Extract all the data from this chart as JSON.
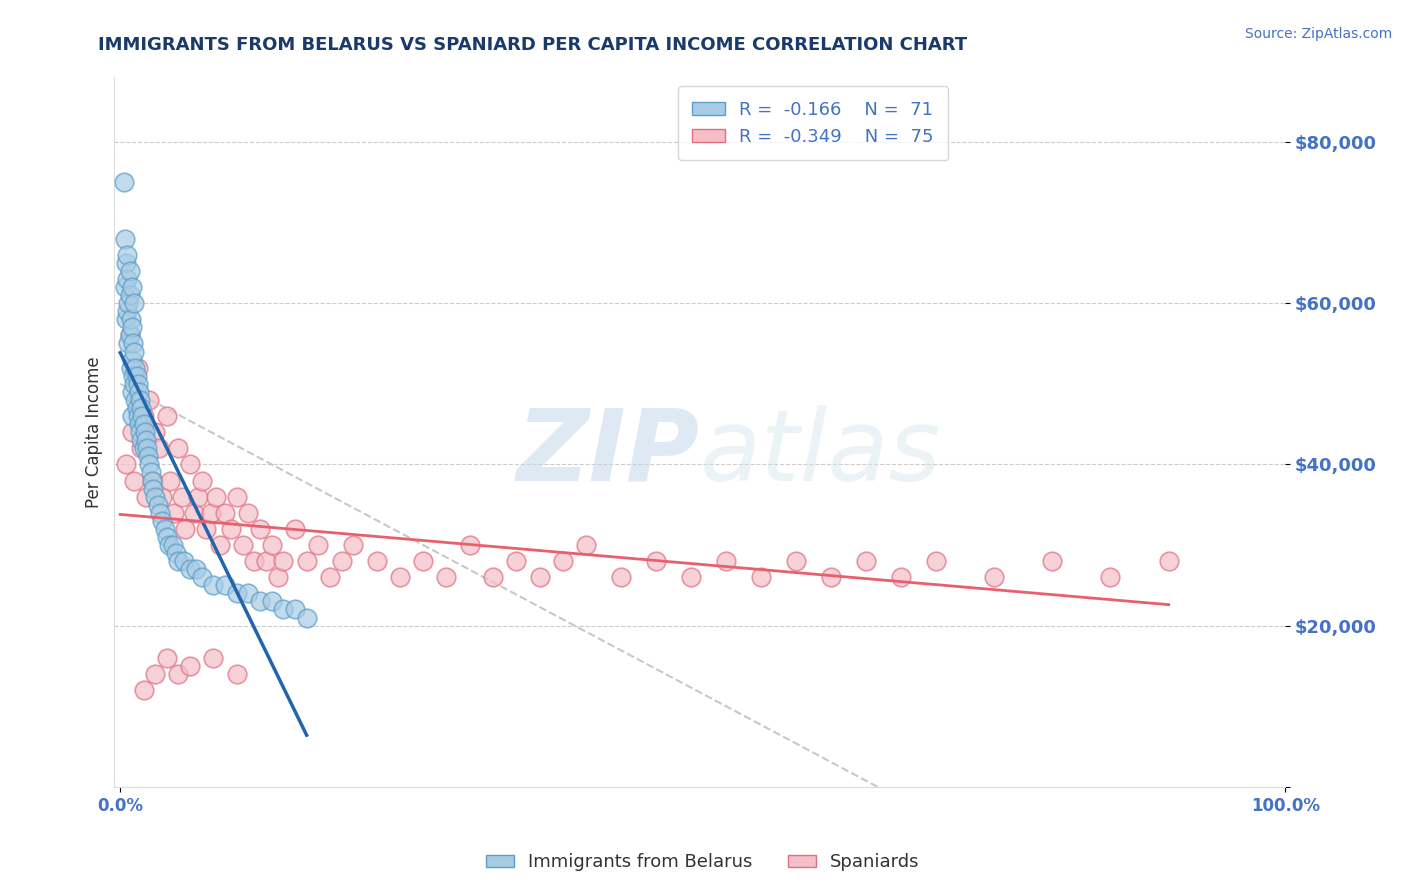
{
  "title": "IMMIGRANTS FROM BELARUS VS SPANIARD PER CAPITA INCOME CORRELATION CHART",
  "source": "Source: ZipAtlas.com",
  "ylabel": "Per Capita Income",
  "ylim": [
    0,
    88000
  ],
  "xlim": [
    -0.005,
    1.0
  ],
  "legend_r1": "-0.166",
  "legend_n1": "71",
  "legend_r2": "-0.349",
  "legend_n2": "75",
  "watermark_zip": "ZIP",
  "watermark_atlas": "atlas",
  "blue_color": "#a8cce4",
  "blue_edge_color": "#5b9ec9",
  "blue_line_color": "#2166ac",
  "pink_color": "#f5bec8",
  "pink_edge_color": "#e07080",
  "pink_line_color": "#e8606e",
  "title_color": "#1a3a6b",
  "source_color": "#4472c4",
  "tick_color": "#4472c4",
  "grid_color": "#cccccc",
  "blue_scatter_x": [
    0.003,
    0.004,
    0.005,
    0.005,
    0.006,
    0.006,
    0.007,
    0.007,
    0.008,
    0.008,
    0.009,
    0.009,
    0.01,
    0.01,
    0.01,
    0.01,
    0.011,
    0.011,
    0.012,
    0.012,
    0.013,
    0.013,
    0.014,
    0.014,
    0.015,
    0.015,
    0.016,
    0.016,
    0.017,
    0.017,
    0.018,
    0.018,
    0.019,
    0.02,
    0.02,
    0.021,
    0.022,
    0.023,
    0.024,
    0.025,
    0.026,
    0.027,
    0.028,
    0.03,
    0.032,
    0.034,
    0.036,
    0.038,
    0.04,
    0.042,
    0.045,
    0.048,
    0.05,
    0.055,
    0.06,
    0.065,
    0.07,
    0.08,
    0.09,
    0.1,
    0.11,
    0.12,
    0.13,
    0.14,
    0.15,
    0.16,
    0.004,
    0.006,
    0.008,
    0.01,
    0.012
  ],
  "blue_scatter_y": [
    75000,
    62000,
    65000,
    58000,
    63000,
    59000,
    60000,
    55000,
    61000,
    56000,
    58000,
    52000,
    57000,
    53000,
    49000,
    46000,
    55000,
    51000,
    54000,
    50000,
    52000,
    48000,
    51000,
    47000,
    50000,
    46000,
    49000,
    45000,
    48000,
    44000,
    47000,
    43000,
    46000,
    45000,
    42000,
    44000,
    43000,
    42000,
    41000,
    40000,
    39000,
    38000,
    37000,
    36000,
    35000,
    34000,
    33000,
    32000,
    31000,
    30000,
    30000,
    29000,
    28000,
    28000,
    27000,
    27000,
    26000,
    25000,
    25000,
    24000,
    24000,
    23000,
    23000,
    22000,
    22000,
    21000,
    68000,
    66000,
    64000,
    62000,
    60000
  ],
  "pink_scatter_x": [
    0.005,
    0.008,
    0.01,
    0.012,
    0.015,
    0.018,
    0.02,
    0.022,
    0.025,
    0.028,
    0.03,
    0.033,
    0.036,
    0.04,
    0.043,
    0.046,
    0.05,
    0.053,
    0.056,
    0.06,
    0.063,
    0.067,
    0.07,
    0.074,
    0.078,
    0.082,
    0.086,
    0.09,
    0.095,
    0.1,
    0.105,
    0.11,
    0.115,
    0.12,
    0.125,
    0.13,
    0.135,
    0.14,
    0.15,
    0.16,
    0.17,
    0.18,
    0.19,
    0.2,
    0.22,
    0.24,
    0.26,
    0.28,
    0.3,
    0.32,
    0.34,
    0.36,
    0.38,
    0.4,
    0.43,
    0.46,
    0.49,
    0.52,
    0.55,
    0.58,
    0.61,
    0.64,
    0.67,
    0.7,
    0.75,
    0.8,
    0.85,
    0.9,
    0.02,
    0.03,
    0.04,
    0.05,
    0.06,
    0.08,
    0.1
  ],
  "pink_scatter_y": [
    40000,
    56000,
    44000,
    38000,
    52000,
    42000,
    46000,
    36000,
    48000,
    38000,
    44000,
    42000,
    36000,
    46000,
    38000,
    34000,
    42000,
    36000,
    32000,
    40000,
    34000,
    36000,
    38000,
    32000,
    34000,
    36000,
    30000,
    34000,
    32000,
    36000,
    30000,
    34000,
    28000,
    32000,
    28000,
    30000,
    26000,
    28000,
    32000,
    28000,
    30000,
    26000,
    28000,
    30000,
    28000,
    26000,
    28000,
    26000,
    30000,
    26000,
    28000,
    26000,
    28000,
    30000,
    26000,
    28000,
    26000,
    28000,
    26000,
    28000,
    26000,
    28000,
    26000,
    28000,
    26000,
    28000,
    26000,
    28000,
    12000,
    14000,
    16000,
    14000,
    15000,
    16000,
    14000
  ]
}
